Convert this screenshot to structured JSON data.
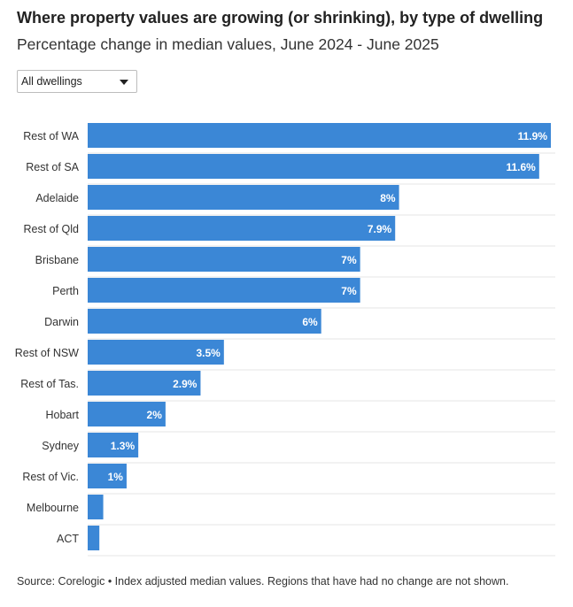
{
  "header": {
    "title": "Where property values are growing (or shrinking), by type of dwelling",
    "subtitle": "Percentage change in median values, June 2024 - June 2025"
  },
  "filter": {
    "selected": "All dwellings",
    "icon": "chevron-down-icon"
  },
  "footer": {
    "source": "Source: Corelogic • Index adjusted median values. Regions that have had no change are not shown."
  },
  "colors": {
    "bar": "#3b87d6",
    "row_line": "#e6e6e6",
    "label_text": "#ffffff",
    "category_text": "#333333"
  },
  "chart_data": {
    "type": "bar",
    "orientation": "horizontal",
    "categories": [
      "Rest of WA",
      "Rest of SA",
      "Adelaide",
      "Rest of Qld",
      "Brisbane",
      "Perth",
      "Darwin",
      "Rest of NSW",
      "Rest of Tas.",
      "Hobart",
      "Sydney",
      "Rest of Vic.",
      "Melbourne",
      "ACT"
    ],
    "values": [
      11.9,
      11.6,
      8,
      7.9,
      7,
      7,
      6,
      3.5,
      2.9,
      2,
      1.3,
      1,
      0.4,
      0.3
    ],
    "data_labels": [
      "11.9%",
      "11.6%",
      "8%",
      "7.9%",
      "7%",
      "7%",
      "6%",
      "3.5%",
      "2.9%",
      "2%",
      "1.3%",
      "1%",
      "",
      ""
    ],
    "xlim": [
      0,
      11.9
    ],
    "grid": false,
    "legend": "none"
  }
}
